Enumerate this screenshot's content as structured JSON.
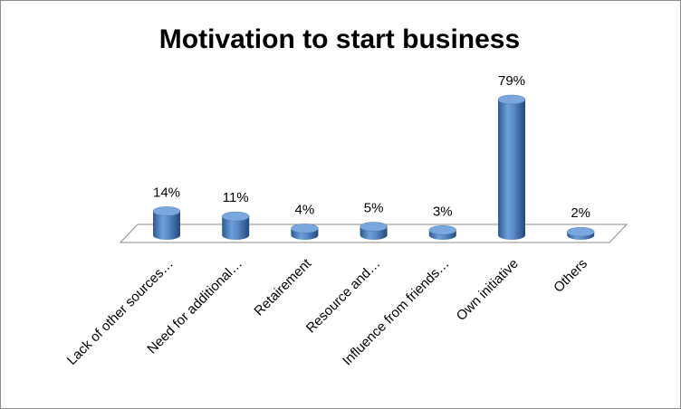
{
  "chart_data": {
    "type": "bar3d",
    "title": "Motivation to start business",
    "categories": [
      "Lack of other sources…",
      "Need for additional…",
      "Retairement",
      "Resource and…",
      "Influence from friends…",
      "Own initiative",
      "Others"
    ],
    "values": [
      14,
      11,
      4,
      5,
      3,
      79,
      2
    ],
    "value_labels": [
      "14%",
      "11%",
      "4%",
      "5%",
      "3%",
      "79%",
      "2%"
    ],
    "color": "#4f81bd"
  }
}
